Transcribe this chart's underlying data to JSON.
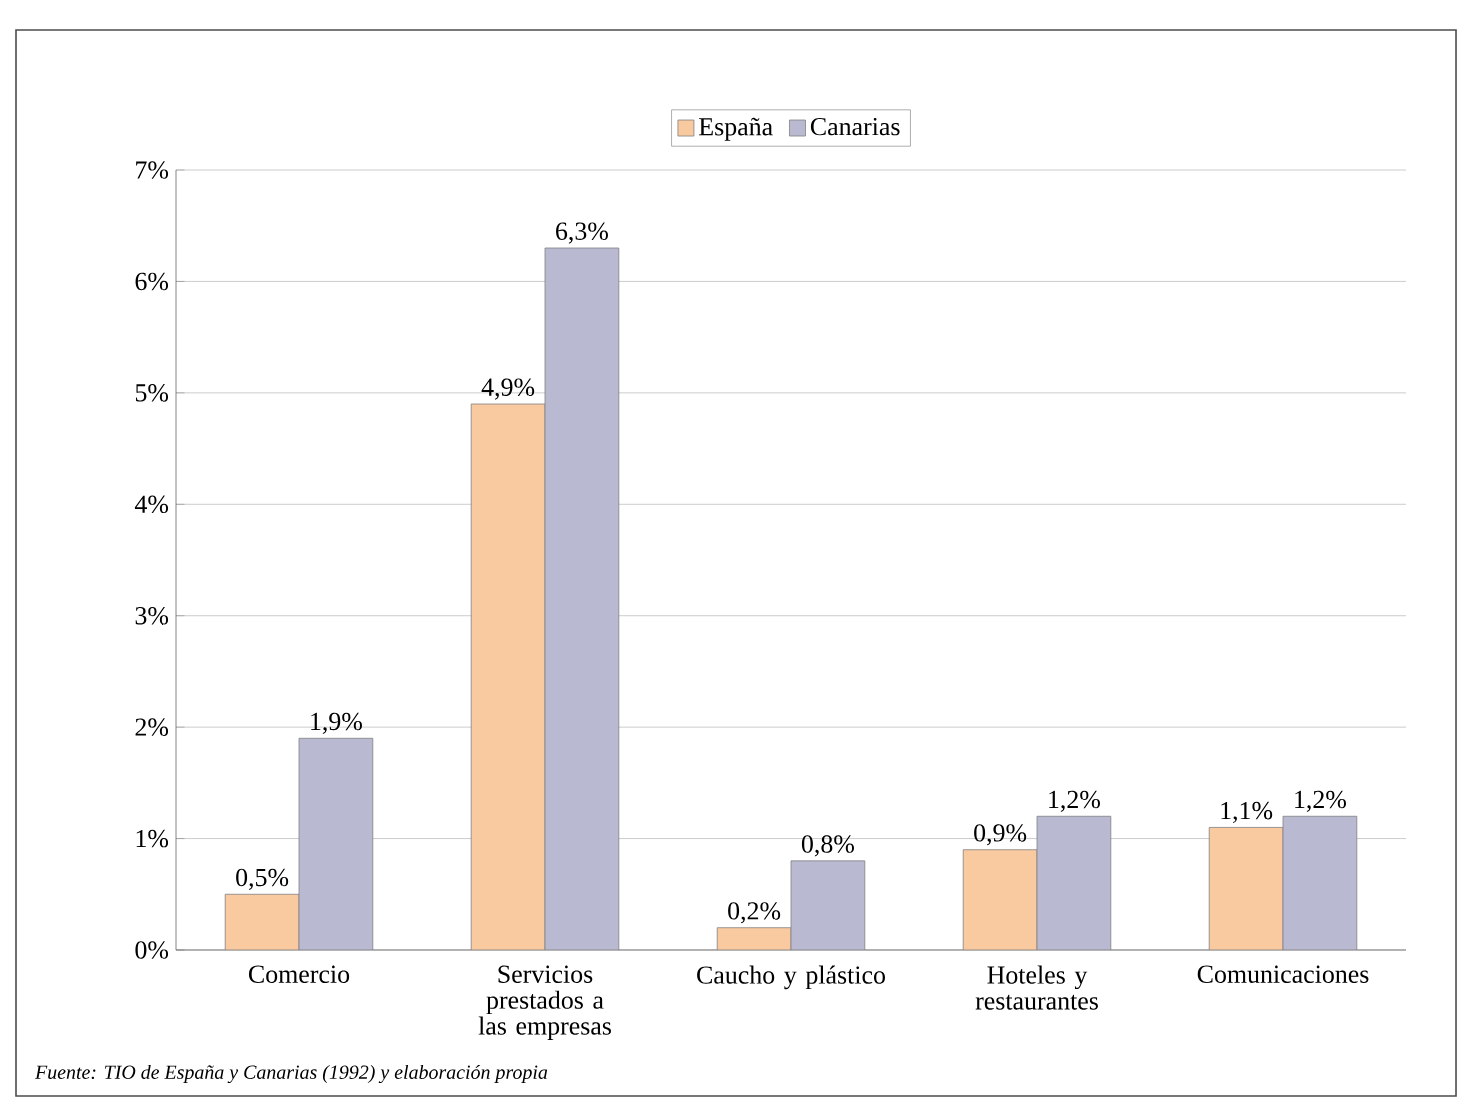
{
  "chart_data": {
    "type": "bar",
    "categories": [
      "Comercio",
      "Servicios prestados a las empresas",
      "Caucho y plástico",
      "Hoteles y restaurantes",
      "Comunicaciones"
    ],
    "series": [
      {
        "name": "España",
        "color": "#f9c9a0",
        "values": [
          0.5,
          4.9,
          0.2,
          0.9,
          1.1
        ],
        "value_labels": [
          "0,5%",
          "4,9%",
          "0,2%",
          "0,9%",
          "1,1%"
        ]
      },
      {
        "name": "Canarias",
        "color": "#b9b9d2",
        "values": [
          1.9,
          6.3,
          0.8,
          1.2,
          1.2
        ],
        "value_labels": [
          "1,9%",
          "6,3%",
          "0,8%",
          "1,2%",
          "1,2%"
        ]
      }
    ],
    "ylim": [
      0,
      7
    ],
    "yticks": [
      {
        "value": 0,
        "label": "0%"
      },
      {
        "value": 1,
        "label": "1%"
      },
      {
        "value": 2,
        "label": "2%"
      },
      {
        "value": 3,
        "label": "3%"
      },
      {
        "value": 4,
        "label": "4%"
      },
      {
        "value": 5,
        "label": "5%"
      },
      {
        "value": 6,
        "label": "6%"
      },
      {
        "value": 7,
        "label": "7%"
      }
    ],
    "grid": "y",
    "legend": "top",
    "annotations": [
      "Fuente: TIO de España y Canarias (1992) y elaboración propia"
    ]
  }
}
